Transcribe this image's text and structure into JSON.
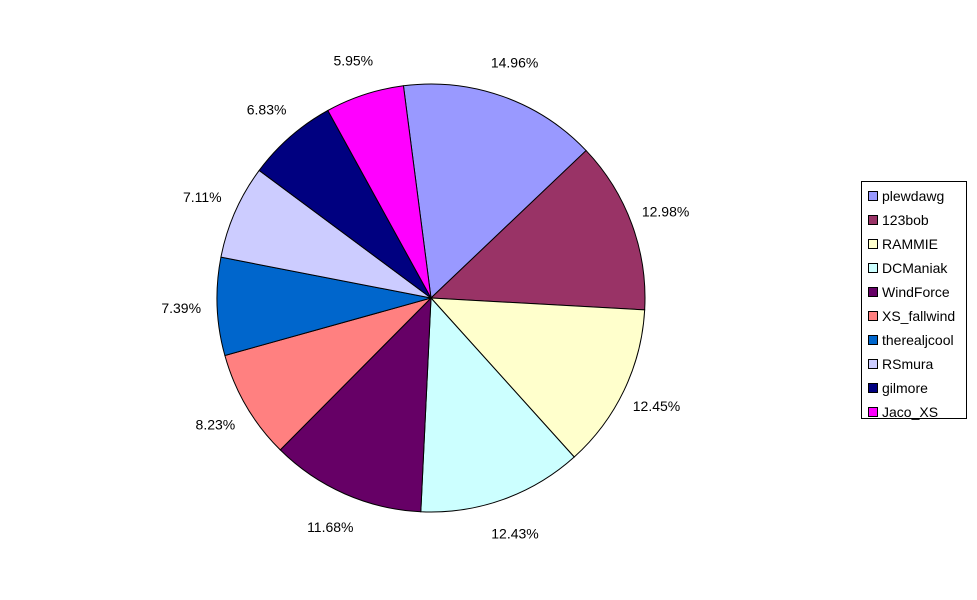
{
  "chart_data": {
    "type": "pie",
    "title": "",
    "legend_position": "right",
    "categories": [
      "plewdawg",
      "123bob",
      "RAMMIE",
      "DCManiak",
      "WindForce",
      "XS_fallwind",
      "therealjcool",
      "RSmura",
      "gilmore",
      "Jaco_XS"
    ],
    "values": [
      14.96,
      12.98,
      12.45,
      12.43,
      11.68,
      8.23,
      7.39,
      7.11,
      6.83,
      5.95
    ],
    "labels": [
      "14.96%",
      "12.98%",
      "12.45%",
      "12.43%",
      "11.68%",
      "8.23%",
      "7.39%",
      "7.11%",
      "6.83%",
      "5.95%"
    ],
    "colors": [
      "#9999ff",
      "#993366",
      "#ffffcc",
      "#ccffff",
      "#660066",
      "#ff8080",
      "#0066cc",
      "#ccccff",
      "#000080",
      "#ff00ff"
    ]
  }
}
